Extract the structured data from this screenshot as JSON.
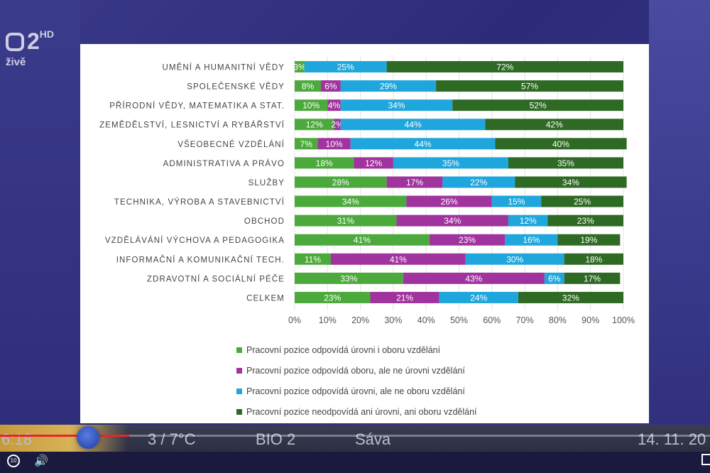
{
  "channel": {
    "name": "2",
    "hd": "HD",
    "live": "živě"
  },
  "ticker": {
    "time": "6:18",
    "temp": "3 / 7°C",
    "program": "BIO 2",
    "nameday": "Sáva",
    "date": "14. 11. 20"
  },
  "player": {
    "progress_fraction": 0.182,
    "rewind_label": "10"
  },
  "colors": {
    "green": "#4caa3c",
    "purple": "#a0339e",
    "blue": "#1fa6dc",
    "darkgreen": "#2f6a24"
  },
  "chart_data": {
    "type": "bar",
    "orientation": "horizontal",
    "stacked": true,
    "categories": [
      "UMĚNÍ A HUMANITNÍ VĚDY",
      "SPOLEČENSKÉ VĚDY",
      "PŘÍRODNÍ VĚDY, MATEMATIKA A STAT.",
      "ZEMĚDĚLSTVÍ, LESNICTVÍ A RYBÁŘSTVÍ",
      "VŠEOBECNÉ VZDĚLÁNÍ",
      "ADMINISTRATIVA A PRÁVO",
      "SLUŽBY",
      "TECHNIKA, VÝROBA A STAVEBNICTVÍ",
      "OBCHOD",
      "VZDĚLÁVÁNÍ VÝCHOVA A PEDAGOGIKA",
      "INFORMAČNÍ A KOMUNIKAČNÍ TECH.",
      "ZDRAVOTNÍ A SOCIÁLNÍ PÉČE",
      "CELKEM"
    ],
    "series": [
      {
        "name": "Pracovní pozice odpovídá úrovni i oboru vzdělání",
        "color": "#4caa3c",
        "values": [
          3,
          8,
          10,
          12,
          7,
          18,
          28,
          34,
          31,
          41,
          11,
          33,
          23
        ]
      },
      {
        "name": "Pracovní pozice odpovídá oboru, ale ne úrovni vzdělání",
        "color": "#a0339e",
        "values": [
          0,
          6,
          4,
          2,
          10,
          12,
          17,
          26,
          34,
          23,
          41,
          43,
          21
        ]
      },
      {
        "name": "Pracovní pozice odpovídá úrovni, ale ne oboru vzdělání",
        "color": "#1fa6dc",
        "values": [
          25,
          29,
          34,
          44,
          44,
          35,
          22,
          15,
          12,
          16,
          30,
          6,
          24
        ]
      },
      {
        "name": "Pracovní pozice neodpovídá ani úrovni, ani oboru vzdělání",
        "color": "#2f6a24",
        "values": [
          72,
          57,
          52,
          42,
          40,
          35,
          34,
          25,
          23,
          19,
          18,
          17,
          32
        ]
      }
    ],
    "xlim": [
      0,
      100
    ],
    "xticks": [
      "0%",
      "10%",
      "20%",
      "30%",
      "40%",
      "50%",
      "60%",
      "70%",
      "80%",
      "90%",
      "100%"
    ],
    "legend_position": "bottom",
    "grid": true
  }
}
